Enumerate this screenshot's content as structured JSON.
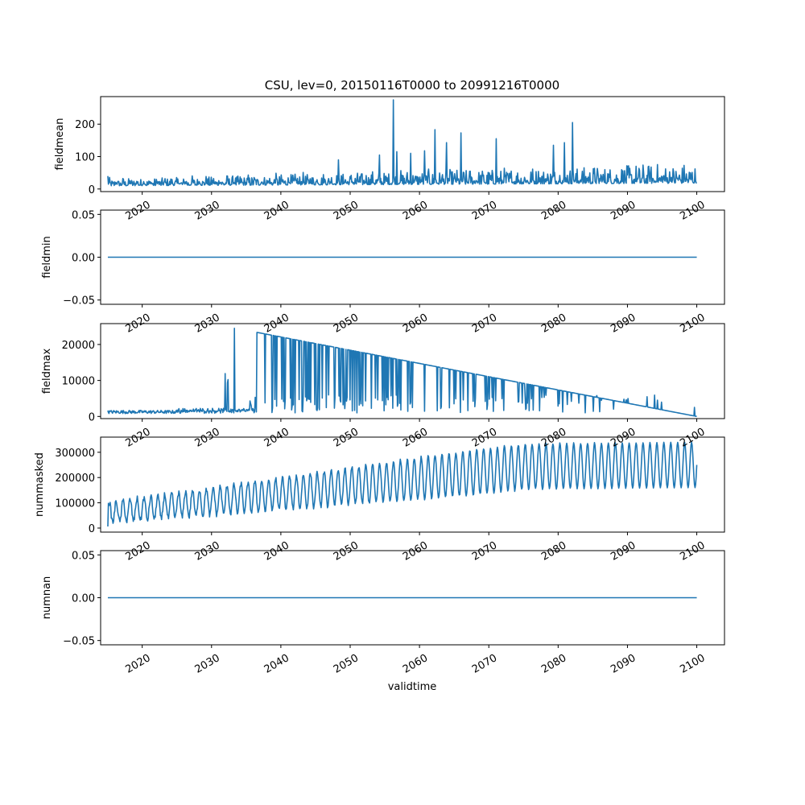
{
  "title": "CSU, lev=0, 20150116T0000 to 20991216T0000",
  "xlabel": "validtime",
  "x_tick_labels": [
    "2020",
    "2030",
    "2040",
    "2050",
    "2060",
    "2070",
    "2080",
    "2090",
    "2100"
  ],
  "line_color": "#1f77b4",
  "chart_data": [
    {
      "type": "line",
      "ylabel": "fieldmean",
      "xlim": [
        2014,
        2104
      ],
      "ylim": [
        -8,
        285
      ],
      "yticks": [
        0,
        100,
        200
      ],
      "ytick_labels": [
        "0",
        "100",
        "200"
      ],
      "series": [
        {
          "generator": "fieldmean",
          "start": 2015.04,
          "end": 2100.0,
          "n": 1020,
          "y_range": [
            3,
            275
          ],
          "peaks": [
            [
              2056.2,
              275
            ],
            [
              2056.7,
              115
            ],
            [
              2062.2,
              183
            ],
            [
              2063.9,
              143
            ],
            [
              2066.0,
              173
            ],
            [
              2071.1,
              155
            ],
            [
              2079.3,
              135
            ],
            [
              2080.9,
              143
            ],
            [
              2082.1,
              205
            ],
            [
              2054.2,
              105
            ],
            [
              2048.3,
              90
            ],
            [
              2058.7,
              110
            ],
            [
              2060.7,
              118
            ]
          ]
        }
      ]
    },
    {
      "type": "line",
      "ylabel": "fieldmin",
      "xlim": [
        2014,
        2104
      ],
      "ylim": [
        -0.055,
        0.055
      ],
      "yticks": [
        -0.05,
        0.0,
        0.05
      ],
      "ytick_labels": [
        "−0.05",
        "0.00",
        "0.05"
      ],
      "series": [
        {
          "generator": "constant",
          "start": 2015.04,
          "end": 2100.0,
          "value": 0.0
        }
      ]
    },
    {
      "type": "line",
      "ylabel": "fieldmax",
      "xlim": [
        2014,
        2104
      ],
      "ylim": [
        -600,
        25800
      ],
      "yticks": [
        0,
        10000,
        20000
      ],
      "ytick_labels": [
        "0",
        "10000",
        "20000"
      ],
      "series": [
        {
          "generator": "fieldmax",
          "start": 2015.04,
          "end": 2100.0,
          "n": 1020,
          "y_range": [
            0,
            24500
          ],
          "spike_2032": [
            2033.3,
            24500
          ],
          "envelope": [
            [
              2037.0,
              23200
            ],
            [
              2100.0,
              0
            ]
          ]
        }
      ]
    },
    {
      "type": "line",
      "ylabel": "nummasked",
      "xlim": [
        2014,
        2104
      ],
      "ylim": [
        -16000,
        360000
      ],
      "yticks": [
        0,
        100000,
        200000,
        300000
      ],
      "ytick_labels": [
        "0",
        "100000",
        "200000",
        "300000"
      ],
      "series": [
        {
          "generator": "nummasked",
          "start": 2015.04,
          "end": 2100.0,
          "n": 1020,
          "y_range": [
            0,
            345000
          ]
        }
      ]
    },
    {
      "type": "line",
      "ylabel": "numnan",
      "xlim": [
        2014,
        2104
      ],
      "ylim": [
        -0.055,
        0.055
      ],
      "yticks": [
        -0.05,
        0.0,
        0.05
      ],
      "ytick_labels": [
        "−0.05",
        "0.00",
        "0.05"
      ],
      "series": [
        {
          "generator": "constant",
          "start": 2015.04,
          "end": 2100.0,
          "value": 0.0
        }
      ]
    }
  ]
}
